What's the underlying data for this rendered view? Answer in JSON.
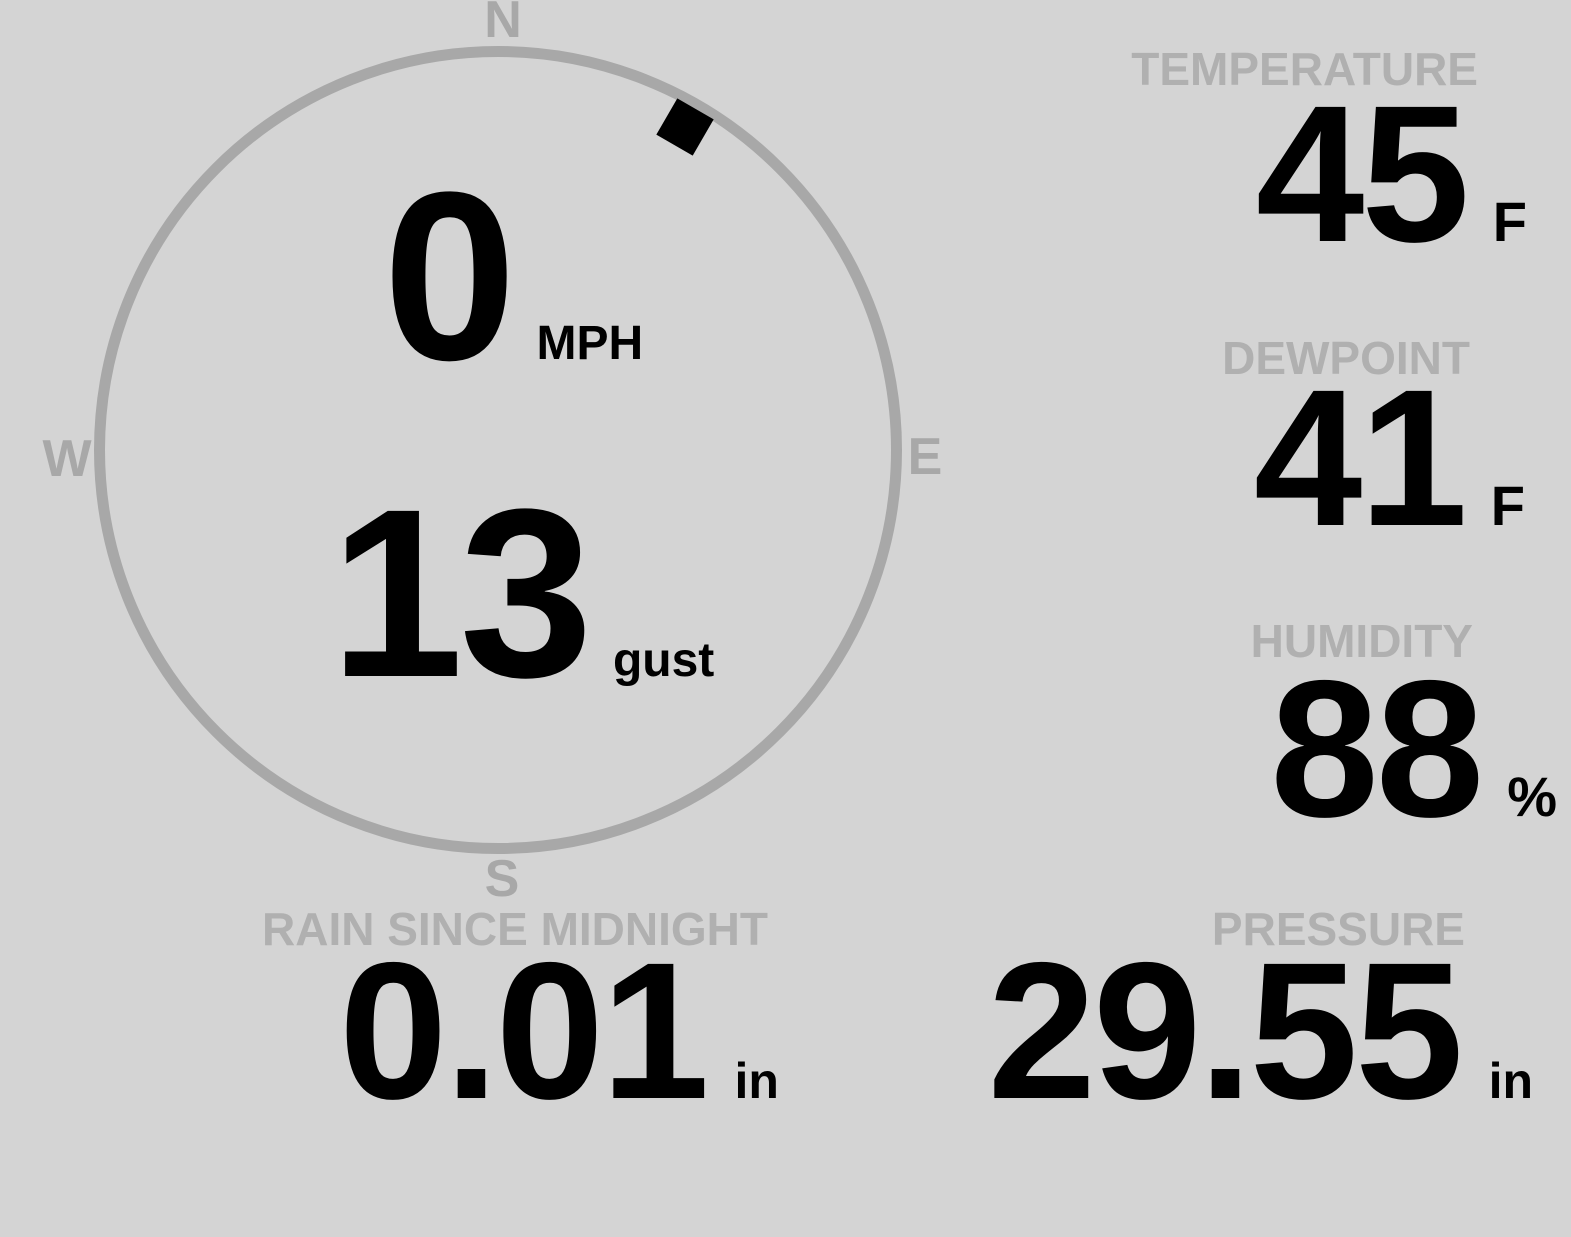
{
  "colors": {
    "background": "#d4d4d4",
    "ring_gray": "#a8a8a8",
    "label_gray": "#b0b0b0",
    "value_black": "#000000"
  },
  "wind_compass": {
    "cardinals": {
      "north": "N",
      "east": "E",
      "south": "S",
      "west": "W"
    },
    "direction_deg": 30,
    "speed": {
      "value": "0",
      "unit": "MPH"
    },
    "gust": {
      "value": "13",
      "unit": "gust"
    }
  },
  "metrics": {
    "temperature": {
      "label": "TEMPERATURE",
      "value": "45",
      "unit": "F"
    },
    "dewpoint": {
      "label": "DEWPOINT",
      "value": "41",
      "unit": "F"
    },
    "humidity": {
      "label": "HUMIDITY",
      "value": "88",
      "unit": "%"
    },
    "rain": {
      "label": "RAIN SINCE MIDNIGHT",
      "value": "0.01",
      "unit": "in"
    },
    "pressure": {
      "label": "PRESSURE",
      "value": "29.55",
      "unit": "in"
    }
  }
}
